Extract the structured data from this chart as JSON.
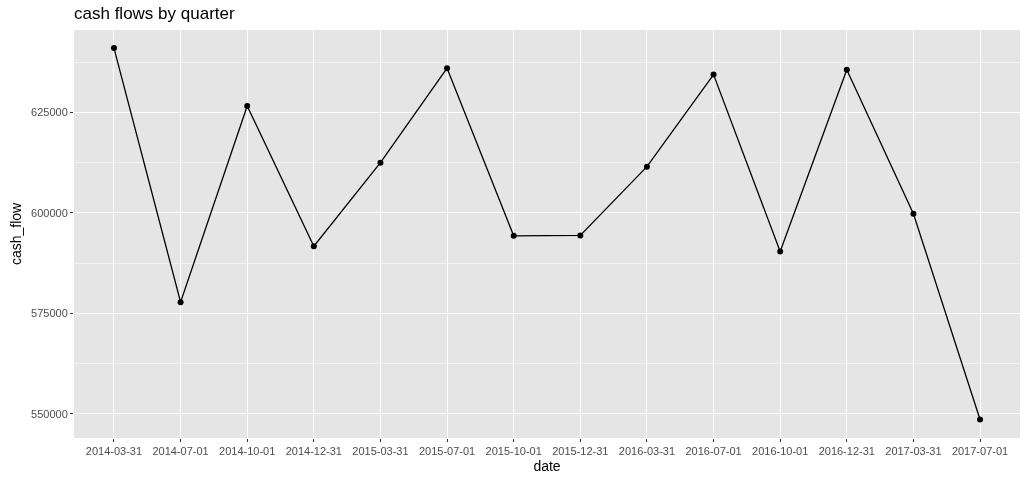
{
  "chart_data": {
    "type": "line",
    "title": "cash flows by quarter",
    "xlabel": "date",
    "ylabel": "cash_flow",
    "categories": [
      "2014-03-31",
      "2014-07-01",
      "2014-10-01",
      "2014-12-31",
      "2015-03-31",
      "2015-07-01",
      "2015-10-01",
      "2015-12-31",
      "2016-03-31",
      "2016-07-01",
      "2016-10-01",
      "2016-12-31",
      "2017-03-31",
      "2017-07-01"
    ],
    "series": [
      {
        "color": "#000000",
        "values": [
          641000,
          577800,
          626600,
          591700,
          612500,
          636000,
          594300,
          594400,
          611500,
          634400,
          590400,
          635600,
          599800,
          548600
        ]
      }
    ],
    "ylim": [
      544000,
      645500
    ],
    "yticks": [
      550000,
      575000,
      600000,
      625000
    ],
    "grid": true,
    "marker": "circle",
    "line_style": "solid"
  }
}
